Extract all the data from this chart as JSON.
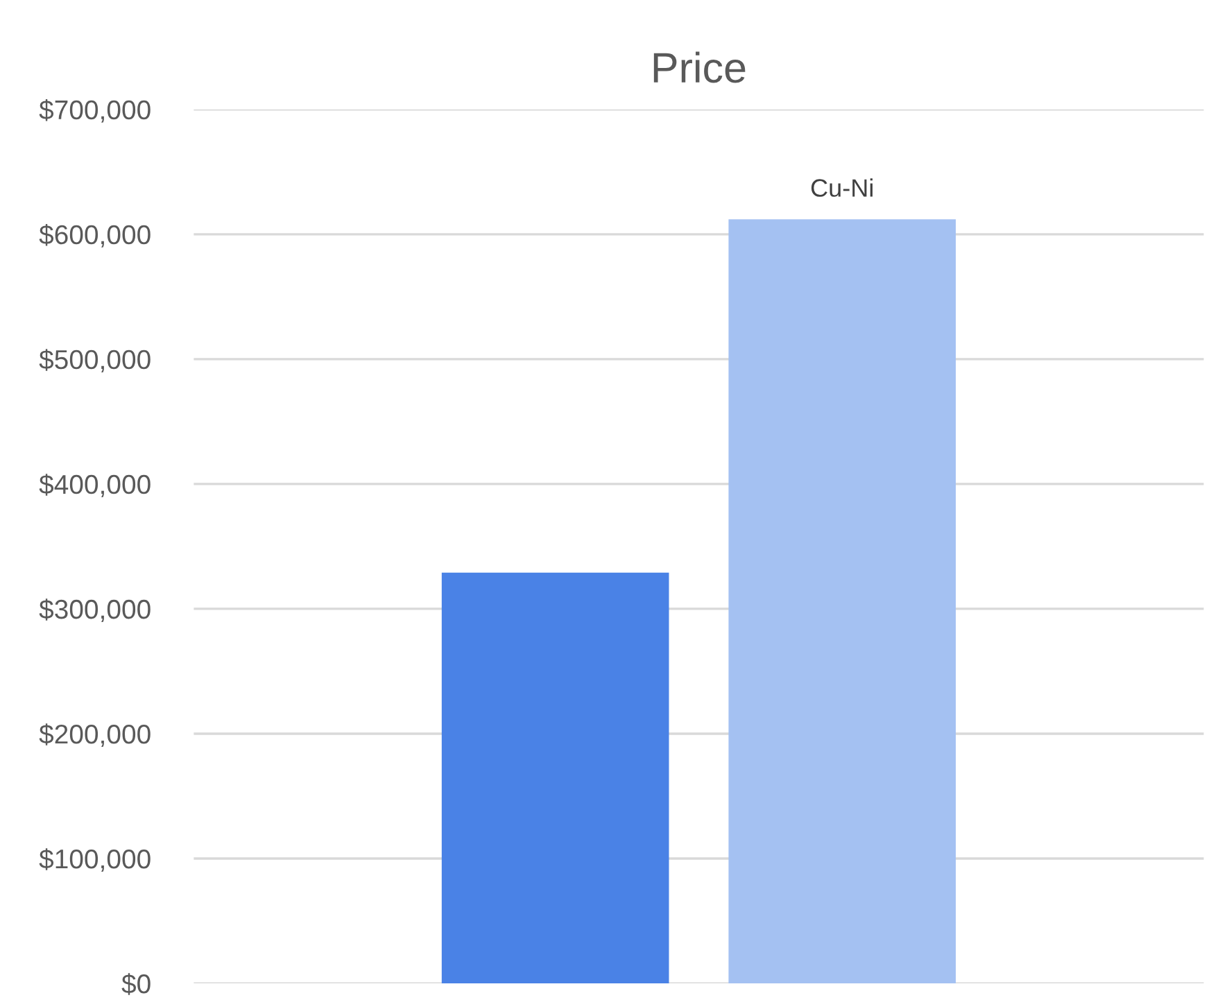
{
  "chart_data": {
    "type": "bar",
    "title": "Price",
    "categories": [
      null
    ],
    "series": [
      {
        "color": "#4a82e6",
        "values": [
          329000
        ]
      },
      {
        "name": "Cu-Ni",
        "color": "#a4c1f2",
        "values": [
          612000
        ]
      }
    ],
    "ylim": [
      0,
      700000
    ],
    "yticks": [
      {
        "value": 0,
        "label": "$0"
      },
      {
        "value": 100000,
        "label": "$100,000"
      },
      {
        "value": 200000,
        "label": "$200,000"
      },
      {
        "value": 300000,
        "label": "$300,000"
      },
      {
        "value": 400000,
        "label": "$400,000"
      },
      {
        "value": 500000,
        "label": "$500,000"
      },
      {
        "value": 600000,
        "label": "$600,000"
      },
      {
        "value": 700000,
        "label": "$700,000"
      }
    ],
    "grid": "y",
    "legend": false
  }
}
